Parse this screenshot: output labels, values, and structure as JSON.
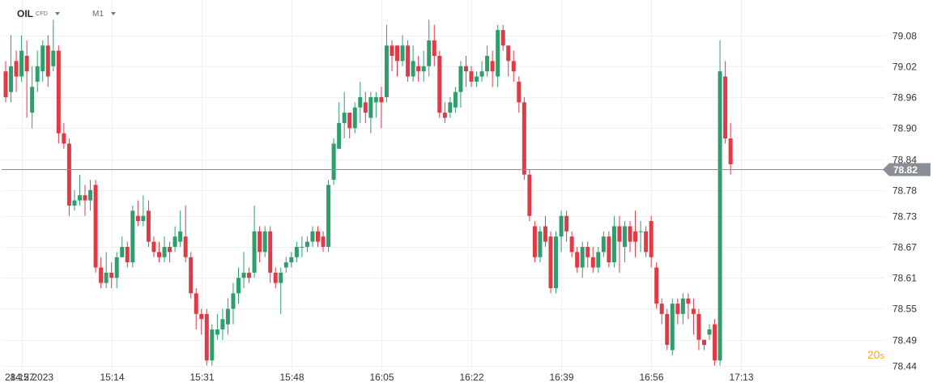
{
  "header": {
    "symbol": "OIL",
    "instrument_type": "CFD",
    "timeframe": "M1"
  },
  "countdown": {
    "value": "20",
    "unit": "s"
  },
  "current_price": {
    "label": "78.82",
    "value": 78.82
  },
  "colors": {
    "up": "#2e9e6d",
    "down": "#e03a47",
    "grid": "#eef0f2",
    "price_line": "#8a8f95",
    "price_tag": "#8a8f95",
    "countdown": "#f5a623"
  },
  "chart_data": {
    "type": "candlestick",
    "grid": true,
    "ylim": [
      78.43,
      79.12
    ],
    "y_ticks": [
      "79.08",
      "79.02",
      "78.96",
      "78.90",
      "78.84",
      "78.78",
      "78.73",
      "78.67",
      "78.61",
      "78.55",
      "78.49",
      "78.44"
    ],
    "x_ticks": [
      "14:57",
      "15:14",
      "15:31",
      "15:48",
      "16:05",
      "16:22",
      "16:39",
      "16:56",
      "17:13"
    ],
    "x_date_label": "28.12.2023",
    "candles": [
      [
        79.01,
        78.96,
        79.03,
        78.95
      ],
      [
        78.97,
        79.02,
        79.08,
        78.95
      ],
      [
        79.03,
        79.0,
        79.05,
        78.97
      ],
      [
        79.0,
        79.05,
        79.08,
        78.99
      ],
      [
        79.04,
        79.01,
        79.07,
        78.92
      ],
      [
        78.93,
        78.98,
        79.02,
        78.9
      ],
      [
        78.99,
        79.02,
        79.05,
        78.97
      ],
      [
        79.01,
        79.06,
        79.07,
        78.99
      ],
      [
        79.06,
        79.0,
        79.08,
        78.98
      ],
      [
        79.02,
        79.05,
        79.11,
        79.01
      ],
      [
        79.05,
        78.89,
        79.06,
        78.87
      ],
      [
        78.89,
        78.87,
        78.91,
        78.86
      ],
      [
        78.87,
        78.75,
        78.88,
        78.73
      ],
      [
        78.75,
        78.76,
        78.78,
        78.74
      ],
      [
        78.76,
        78.77,
        78.81,
        78.75
      ],
      [
        78.77,
        78.76,
        78.79,
        78.73
      ],
      [
        78.76,
        78.78,
        78.8,
        78.74
      ],
      [
        78.79,
        78.63,
        78.8,
        78.62
      ],
      [
        78.63,
        78.6,
        78.65,
        78.59
      ],
      [
        78.6,
        78.62,
        78.66,
        78.59
      ],
      [
        78.62,
        78.61,
        78.64,
        78.59
      ],
      [
        78.61,
        78.65,
        78.66,
        78.59
      ],
      [
        78.65,
        78.67,
        78.69,
        78.65
      ],
      [
        78.67,
        78.64,
        78.68,
        78.63
      ],
      [
        78.64,
        78.74,
        78.75,
        78.63
      ],
      [
        78.73,
        78.72,
        78.76,
        78.71
      ],
      [
        78.72,
        78.73,
        78.77,
        78.71
      ],
      [
        78.74,
        78.68,
        78.76,
        78.67
      ],
      [
        78.68,
        78.66,
        78.69,
        78.65
      ],
      [
        78.66,
        78.65,
        78.68,
        78.64
      ],
      [
        78.65,
        78.67,
        78.69,
        78.64
      ],
      [
        78.67,
        78.66,
        78.68,
        78.64
      ],
      [
        78.67,
        78.69,
        78.71,
        78.66
      ],
      [
        78.68,
        78.7,
        78.74,
        78.67
      ],
      [
        78.69,
        78.65,
        78.75,
        78.64
      ],
      [
        78.65,
        78.58,
        78.66,
        78.57
      ],
      [
        78.58,
        78.54,
        78.59,
        78.51
      ],
      [
        78.54,
        78.53,
        78.55,
        78.5
      ],
      [
        78.54,
        78.45,
        78.55,
        78.44
      ],
      [
        78.45,
        78.51,
        78.52,
        78.44
      ],
      [
        78.5,
        78.51,
        78.54,
        78.49
      ],
      [
        78.51,
        78.53,
        78.55,
        78.49
      ],
      [
        78.52,
        78.55,
        78.57,
        78.5
      ],
      [
        78.55,
        78.58,
        78.6,
        78.52
      ],
      [
        78.58,
        78.61,
        78.63,
        78.56
      ],
      [
        78.61,
        78.62,
        78.66,
        78.59
      ],
      [
        78.62,
        78.61,
        78.63,
        78.6
      ],
      [
        78.62,
        78.7,
        78.75,
        78.61
      ],
      [
        78.7,
        78.66,
        78.71,
        78.64
      ],
      [
        78.66,
        78.7,
        78.71,
        78.65
      ],
      [
        78.7,
        78.62,
        78.71,
        78.6
      ],
      [
        78.62,
        78.6,
        78.63,
        78.59
      ],
      [
        78.6,
        78.62,
        78.63,
        78.54
      ],
      [
        78.63,
        78.64,
        78.65,
        78.62
      ],
      [
        78.64,
        78.65,
        78.66,
        78.63
      ],
      [
        78.65,
        78.67,
        78.68,
        78.64
      ],
      [
        78.67,
        78.67,
        78.69,
        78.65
      ],
      [
        78.67,
        78.68,
        78.69,
        78.66
      ],
      [
        78.68,
        78.7,
        78.71,
        78.67
      ],
      [
        78.7,
        78.68,
        78.71,
        78.67
      ],
      [
        78.69,
        78.67,
        78.7,
        78.66
      ],
      [
        78.67,
        78.79,
        78.8,
        78.66
      ],
      [
        78.8,
        78.87,
        78.88,
        78.79
      ],
      [
        78.86,
        78.91,
        78.95,
        78.86
      ],
      [
        78.91,
        78.93,
        78.97,
        78.88
      ],
      [
        78.93,
        78.9,
        78.93,
        78.88
      ],
      [
        78.9,
        78.94,
        78.95,
        78.89
      ],
      [
        78.94,
        78.96,
        78.99,
        78.91
      ],
      [
        78.95,
        78.93,
        78.97,
        78.91
      ],
      [
        78.92,
        78.96,
        78.97,
        78.89
      ],
      [
        78.95,
        78.96,
        78.97,
        78.92
      ],
      [
        78.96,
        78.95,
        78.98,
        78.9
      ],
      [
        78.96,
        79.06,
        79.1,
        78.95
      ],
      [
        79.06,
        79.04,
        79.07,
        79.01
      ],
      [
        79.06,
        79.03,
        79.06,
        79.0
      ],
      [
        79.03,
        79.06,
        79.08,
        79.02
      ],
      [
        79.06,
        79.0,
        79.07,
        78.99
      ],
      [
        79.0,
        79.03,
        79.06,
        78.99
      ],
      [
        79.02,
        79.01,
        79.04,
        78.99
      ],
      [
        79.01,
        79.02,
        79.05,
        78.99
      ],
      [
        79.02,
        79.07,
        79.11,
        79.0
      ],
      [
        79.07,
        79.04,
        79.1,
        79.02
      ],
      [
        79.04,
        78.93,
        79.05,
        78.92
      ],
      [
        78.93,
        78.92,
        78.95,
        78.91
      ],
      [
        78.93,
        78.95,
        78.96,
        78.92
      ],
      [
        78.94,
        78.97,
        78.98,
        78.93
      ],
      [
        78.97,
        79.02,
        79.03,
        78.94
      ],
      [
        79.02,
        79.01,
        79.04,
        78.98
      ],
      [
        79.01,
        78.99,
        79.02,
        78.98
      ],
      [
        78.99,
        79.0,
        79.01,
        78.98
      ],
      [
        79.0,
        79.01,
        79.03,
        78.99
      ],
      [
        79.01,
        79.04,
        79.06,
        79.0
      ],
      [
        79.03,
        79.01,
        79.05,
        78.98
      ],
      [
        79.0,
        79.09,
        79.1,
        78.98
      ],
      [
        79.09,
        79.06,
        79.1,
        79.05
      ],
      [
        79.06,
        79.03,
        79.06,
        79.0
      ],
      [
        79.03,
        79.01,
        79.05,
        78.99
      ],
      [
        78.99,
        78.95,
        79.0,
        78.93
      ],
      [
        78.95,
        78.81,
        78.96,
        78.8
      ],
      [
        78.81,
        78.73,
        78.82,
        78.72
      ],
      [
        78.71,
        78.65,
        78.72,
        78.64
      ],
      [
        78.65,
        78.7,
        78.71,
        78.64
      ],
      [
        78.71,
        78.68,
        78.73,
        78.67
      ],
      [
        78.69,
        78.59,
        78.7,
        78.58
      ],
      [
        78.59,
        78.69,
        78.7,
        78.58
      ],
      [
        78.69,
        78.73,
        78.74,
        78.66
      ],
      [
        78.73,
        78.7,
        78.74,
        78.68
      ],
      [
        78.69,
        78.66,
        78.7,
        78.65
      ],
      [
        78.66,
        78.63,
        78.67,
        78.62
      ],
      [
        78.63,
        78.67,
        78.68,
        78.61
      ],
      [
        78.67,
        78.65,
        78.68,
        78.63
      ],
      [
        78.65,
        78.63,
        78.67,
        78.62
      ],
      [
        78.63,
        78.66,
        78.67,
        78.62
      ],
      [
        78.66,
        78.69,
        78.7,
        78.65
      ],
      [
        78.69,
        78.64,
        78.7,
        78.63
      ],
      [
        78.64,
        78.71,
        78.73,
        78.63
      ],
      [
        78.71,
        78.68,
        78.73,
        78.62
      ],
      [
        78.67,
        78.71,
        78.72,
        78.64
      ],
      [
        78.71,
        78.68,
        78.72,
        78.66
      ],
      [
        78.7,
        78.68,
        78.74,
        78.65
      ],
      [
        78.7,
        78.7,
        78.72,
        78.66
      ],
      [
        78.7,
        78.66,
        78.71,
        78.65
      ],
      [
        78.72,
        78.65,
        78.73,
        78.63
      ],
      [
        78.63,
        78.56,
        78.64,
        78.55
      ],
      [
        78.56,
        78.54,
        78.57,
        78.52
      ],
      [
        78.54,
        78.48,
        78.55,
        78.47
      ],
      [
        78.47,
        78.56,
        78.57,
        78.46
      ],
      [
        78.56,
        78.54,
        78.57,
        78.52
      ],
      [
        78.54,
        78.57,
        78.58,
        78.52
      ],
      [
        78.57,
        78.56,
        78.58,
        78.53
      ],
      [
        78.55,
        78.54,
        78.57,
        78.5
      ],
      [
        78.54,
        78.49,
        78.55,
        78.47
      ],
      [
        78.49,
        78.48,
        78.49,
        78.47
      ],
      [
        78.5,
        78.51,
        78.52,
        78.49
      ],
      [
        78.52,
        78.45,
        78.53,
        78.44
      ],
      [
        78.45,
        79.01,
        79.07,
        78.44
      ],
      [
        79.0,
        78.88,
        79.03,
        78.87
      ],
      [
        78.88,
        78.83,
        78.91,
        78.81
      ]
    ]
  }
}
